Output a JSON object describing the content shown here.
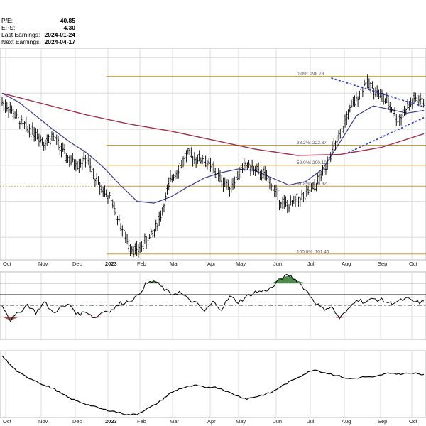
{
  "stats": [
    {
      "label": "P/E:",
      "value": "40.85"
    },
    {
      "label": "EPS:",
      "value": "4.30"
    },
    {
      "label": "Last Earnings:",
      "value": "2024-01-24"
    },
    {
      "label": "Next Earnings:",
      "value": "2024-04-17"
    }
  ],
  "colors": {
    "price_bar": "#000000",
    "ma_short": "#3a3a8c",
    "ma_long": "#a0304a",
    "fib": "#d49a1c",
    "trendline": "#2a35c8",
    "oscillator_positive_fill": "#4e8a4e",
    "oscillator_negative_fill": "#a05050",
    "grid": "#dcdcdc"
  },
  "chart_data": [
    {
      "type": "line",
      "panel": "price",
      "x_axis_labels": [
        "Oct",
        "Nov",
        "Dec",
        "2023",
        "Feb",
        "Mar",
        "Apr",
        "May",
        "Jun",
        "Jul",
        "Aug",
        "Sep",
        "Oct"
      ],
      "ylim": [
        95,
        330
      ],
      "grid": true,
      "series": [
        {
          "role": "price",
          "style": "ohlc-bars",
          "x": [
            0,
            2,
            4,
            6,
            8,
            10,
            12,
            14,
            16,
            18,
            20,
            22,
            24,
            26,
            28,
            30,
            32,
            34,
            36,
            38,
            40,
            42,
            44,
            46,
            48,
            50,
            52,
            54,
            56,
            58,
            60,
            62,
            64,
            66,
            68,
            70,
            72,
            74,
            76,
            78,
            80,
            82,
            84,
            86,
            88,
            90,
            92,
            94,
            96,
            98,
            100
          ],
          "values": [
            270,
            262,
            250,
            240,
            237,
            225,
            232,
            218,
            205,
            202,
            208,
            185,
            172,
            160,
            135,
            112,
            104,
            115,
            125,
            150,
            185,
            198,
            212,
            208,
            206,
            195,
            184,
            176,
            190,
            201,
            194,
            190,
            178,
            160,
            154,
            162,
            166,
            175,
            192,
            214,
            230,
            257,
            274,
            292,
            286,
            276,
            266,
            250,
            264,
            274,
            270
          ]
        },
        {
          "role": "moving-average-short",
          "x": [
            0,
            4,
            8,
            12,
            16,
            20,
            24,
            28,
            32,
            36,
            40,
            44,
            48,
            52,
            56,
            60,
            64,
            68,
            72,
            76,
            80,
            84,
            88,
            92,
            96,
            100
          ],
          "values": [
            280,
            270,
            255,
            240,
            226,
            214,
            198,
            178,
            160,
            158,
            165,
            176,
            186,
            192,
            196,
            194,
            186,
            178,
            182,
            196,
            225,
            255,
            266,
            262,
            258,
            261
          ]
        },
        {
          "role": "moving-average-long",
          "x": [
            0,
            10,
            20,
            30,
            40,
            50,
            60,
            70,
            80,
            90,
            100
          ],
          "values": [
            280,
            268,
            256,
            246,
            238,
            228,
            218,
            211,
            212,
            220,
            235
          ]
        }
      ],
      "fib_levels": [
        {
          "label": "0.0%: 298.73",
          "value": 298.73
        },
        {
          "label": "38.2%: 222.37",
          "value": 222.37
        },
        {
          "label": "50.0%: 200.10",
          "value": 200.1
        },
        {
          "label": "61.8%: 176.82",
          "value": 176.82
        },
        {
          "label": "100.0%: 101.46",
          "value": 101.46
        }
      ],
      "trendlines": [
        {
          "x": [
            78,
            100
          ],
          "values": [
            297,
            265
          ]
        },
        {
          "x": [
            82,
            100
          ],
          "values": [
            214,
            253
          ]
        }
      ]
    },
    {
      "type": "line",
      "panel": "oscillator",
      "x_axis_labels": [],
      "ylim": [
        -3,
        3
      ],
      "reference_lines": [
        2,
        1,
        -1
      ],
      "centerline": 0,
      "series": [
        {
          "role": "oscillator",
          "x": [
            0,
            2,
            4,
            6,
            8,
            10,
            12,
            14,
            16,
            18,
            20,
            22,
            24,
            26,
            28,
            30,
            32,
            34,
            36,
            38,
            40,
            42,
            44,
            46,
            48,
            50,
            52,
            54,
            56,
            58,
            60,
            62,
            64,
            66,
            68,
            70,
            72,
            74,
            76,
            78,
            80,
            82,
            84,
            86,
            88,
            90,
            92,
            94,
            96,
            98,
            100
          ],
          "values": [
            0.1,
            -1.3,
            -0.6,
            0.1,
            -0.6,
            0.3,
            -0.6,
            -0.2,
            0.1,
            -0.8,
            -0.5,
            -1.1,
            -0.5,
            -0.4,
            0.2,
            0.4,
            0.8,
            1.9,
            2.2,
            1.6,
            1.0,
            1.2,
            0.6,
            0.2,
            -0.5,
            0.3,
            -0.3,
            0.8,
            0.3,
            0.8,
            1.2,
            1.3,
            1.6,
            2.4,
            2.7,
            2.2,
            1.4,
            0.4,
            -0.3,
            -0.1,
            -1.1,
            -0.4,
            0.6,
            0.3,
            0.6,
            0.5,
            0.2,
            0.4,
            0.6,
            0.3,
            0.3
          ]
        }
      ]
    },
    {
      "type": "line",
      "panel": "relative-strength",
      "x_axis_labels": [
        "Oct",
        "Nov",
        "Dec",
        "2023",
        "Feb",
        "Mar",
        "Apr",
        "May",
        "Jun",
        "Jul",
        "Aug",
        "Sep",
        "Oct"
      ],
      "ylim": [
        0,
        100
      ],
      "series": [
        {
          "role": "relative-strength",
          "x": [
            0,
            2,
            4,
            6,
            8,
            10,
            12,
            14,
            16,
            18,
            20,
            22,
            24,
            26,
            28,
            30,
            32,
            34,
            36,
            38,
            40,
            42,
            44,
            46,
            48,
            50,
            52,
            54,
            56,
            58,
            60,
            62,
            64,
            66,
            68,
            70,
            72,
            74,
            76,
            78,
            80,
            82,
            84,
            86,
            88,
            90,
            92,
            94,
            96,
            98,
            100
          ],
          "values": [
            93,
            78,
            67,
            60,
            55,
            48,
            44,
            36,
            29,
            24,
            20,
            16,
            12,
            10,
            7,
            4,
            5,
            12,
            18,
            27,
            37,
            43,
            46,
            48,
            45,
            46,
            43,
            37,
            32,
            28,
            31,
            34,
            38,
            46,
            53,
            60,
            66,
            72,
            68,
            65,
            62,
            58,
            59,
            61,
            60,
            64,
            67,
            65,
            66,
            67,
            64
          ]
        }
      ]
    }
  ]
}
